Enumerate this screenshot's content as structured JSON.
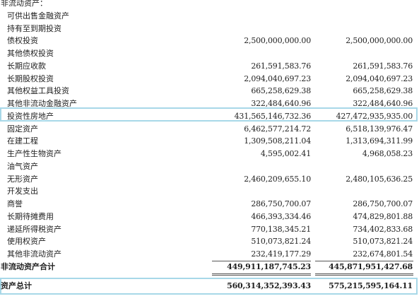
{
  "table": {
    "rows": [
      [
        "非流动资产："
      ],
      [
        "可供出售金融资产"
      ],
      [
        "持有至到期投资"
      ],
      [
        "债权投资",
        "2,500,000,000.00",
        "2,500,000,000.00"
      ],
      [
        "其他债权投资"
      ],
      [
        "长期应收款",
        "261,591,583.76",
        "261,591,583.76"
      ],
      [
        "长期股权投资",
        "2,094,040,697.23",
        "2,094,040,697.23"
      ],
      [
        "其他权益工具投资",
        "665,258,629.38",
        "665,258,629.38"
      ],
      [
        "其他非流动金融资产",
        "322,484,640.96",
        "322,484,640.96"
      ],
      [
        "投资性房地产",
        "431,565,146,732.36",
        "427,472,935,935.00"
      ],
      [
        "固定资产",
        "6,462,577,214.72",
        "6,518,139,976.47"
      ],
      [
        "在建工程",
        "1,309,508,211.04",
        "1,313,694,311.99"
      ],
      [
        "生产性生物资产",
        "4,595,002.41",
        "4,968,058.23"
      ],
      [
        "油气资产"
      ],
      [
        "无形资产",
        "2,460,209,655.10",
        "2,480,105,636.25"
      ],
      [
        "开发支出"
      ],
      [
        "商誉",
        "286,750,700.07",
        "286,750,700.07"
      ],
      [
        "长期待摊费用",
        "466,393,334.46",
        "474,829,801.88"
      ],
      [
        "递延所得税资产",
        "770,138,345.21",
        "734,402,833.68"
      ],
      [
        "使用权资产",
        "510,073,821.24",
        "510,073,821.24"
      ],
      [
        "其他非流动资产",
        "232,419,177.29",
        "232,674,801.54"
      ],
      [
        "非流动资产合计",
        "449,911,187,745.23",
        "445,871,951,427.68"
      ],
      [
        "资产总计",
        "560,314,352,393.43",
        "575,215,595,164.11"
      ]
    ]
  }
}
